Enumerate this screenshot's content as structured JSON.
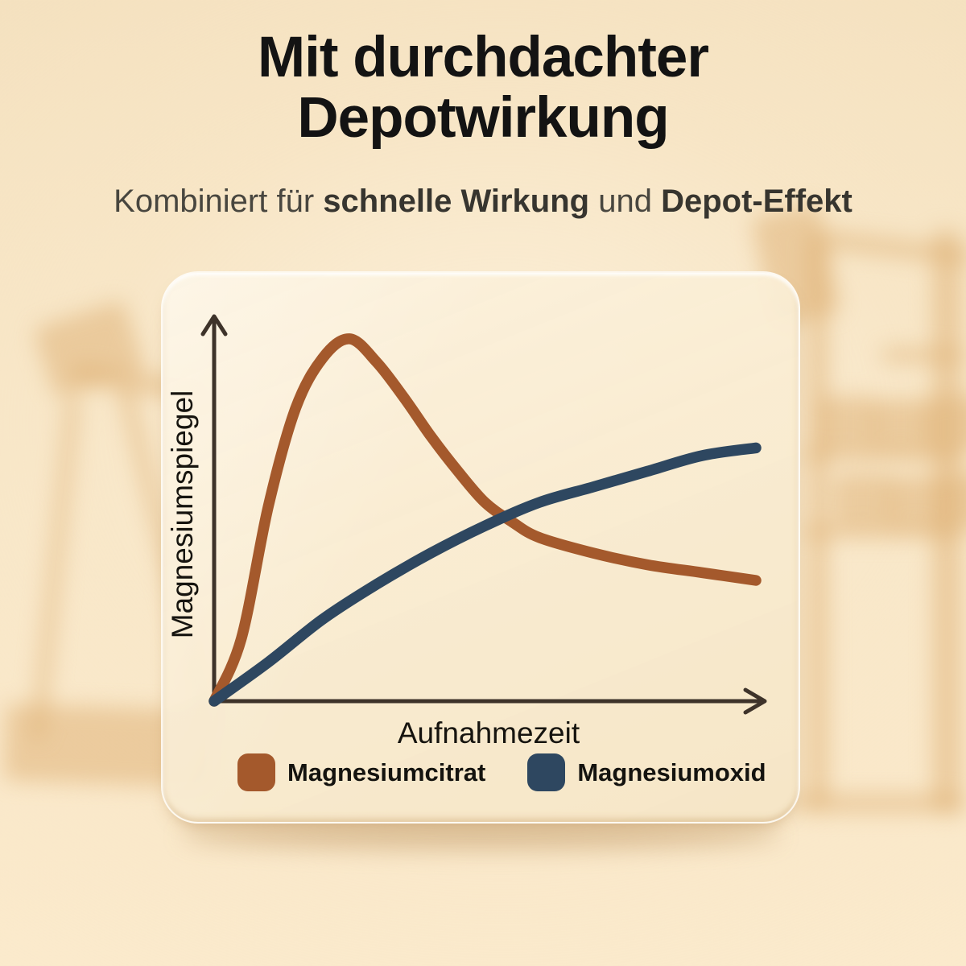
{
  "header": {
    "title_line1": "Mit durchdachter",
    "title_line2": "Depotwirkung",
    "subtitle": {
      "part1": "Kombiniert für ",
      "bold1": "schnelle Wirkung",
      "part2": " und ",
      "bold2": "Depot-Effekt"
    }
  },
  "chart_data": {
    "type": "line",
    "title": "",
    "xlabel": "Aufnahmezeit",
    "ylabel": "Magnesiumspiegel",
    "x_range": [
      0,
      10
    ],
    "y_range": [
      0,
      100
    ],
    "grid": false,
    "axis_ticks": "none (conceptual chart, unlabeled axes with arrowheads)",
    "legend_position": "bottom",
    "axis_color": "#3E332A",
    "series": [
      {
        "name": "Magnesiumcitrat",
        "color": "#A4592C",
        "shape": "fast peak then decline (schnelle Wirkung)",
        "x": [
          0,
          0.5,
          1,
          1.5,
          2,
          2.5,
          3,
          3.5,
          4,
          4.5,
          5,
          5.5,
          6,
          7,
          8,
          9,
          10
        ],
        "y": [
          0,
          16,
          50,
          75,
          88,
          93,
          87,
          78,
          68,
          59,
          51,
          46,
          42,
          38,
          35,
          33,
          31
        ]
      },
      {
        "name": "Magnesiumoxid",
        "color": "#2E4760",
        "shape": "slow steady rise, depot effect",
        "x": [
          0,
          1,
          2,
          3,
          4,
          5,
          6,
          7,
          8,
          9,
          10
        ],
        "y": [
          0,
          10,
          21,
          30,
          38,
          45,
          51,
          55,
          59,
          63,
          65
        ]
      }
    ]
  },
  "background": {
    "scene": "blurred gym: treadmill left, barbell and dumbbell rack right",
    "base_top": "#F3DFBC",
    "base_bottom": "#FBEACC",
    "silhouette": "#DEB074"
  }
}
